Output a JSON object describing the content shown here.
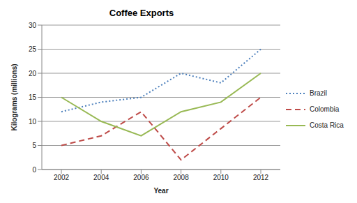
{
  "chart_data": {
    "type": "line",
    "title": "Coffee Exports",
    "x_label": "Year",
    "y_label": "Kilograms (millions)",
    "categories": [
      "2002",
      "2004",
      "2006",
      "2008",
      "2010",
      "2012"
    ],
    "series": [
      {
        "name": "Brazil",
        "color": "#4a7ebb",
        "line_style": "dotted",
        "values": [
          12,
          14,
          15,
          20,
          18,
          25
        ]
      },
      {
        "name": "Colombia",
        "color": "#be4b48",
        "line_style": "dashed",
        "values": [
          5,
          7,
          12,
          2,
          8.5,
          15
        ]
      },
      {
        "name": "Costa Rica",
        "color": "#98b954",
        "line_style": "solid",
        "values": [
          15,
          10,
          7,
          12,
          14,
          20
        ]
      }
    ],
    "ylim": [
      0,
      30
    ],
    "yticks": [
      0,
      5,
      10,
      15,
      20,
      25,
      30
    ],
    "grid": true,
    "legend": "right"
  }
}
